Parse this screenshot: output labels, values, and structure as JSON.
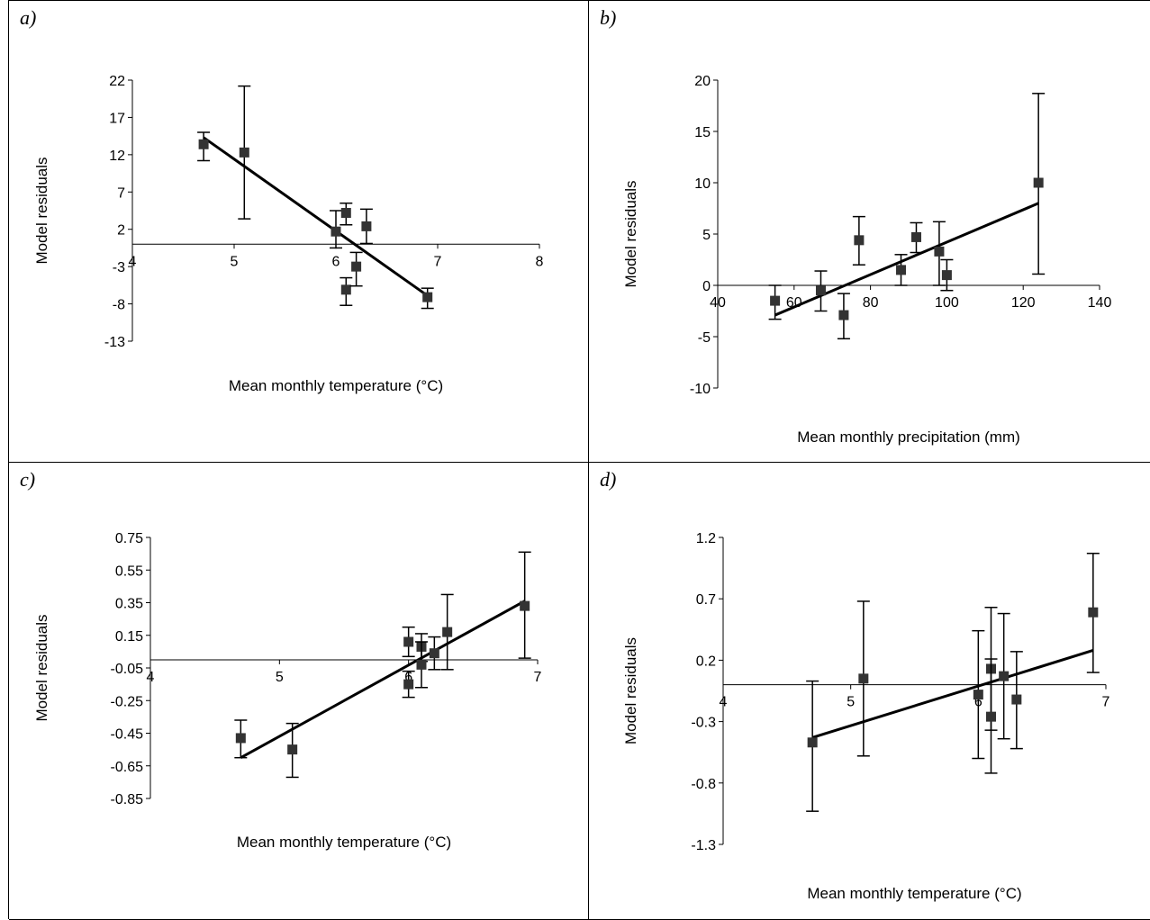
{
  "chart_data": [
    {
      "panel_label": "a)",
      "type": "scatter",
      "xlabel": "Mean monthly temperature (°C)",
      "ylabel": "Model residuals",
      "xlim": [
        4,
        8
      ],
      "ylim": [
        -13,
        22
      ],
      "x_ticks": [
        "4",
        "5",
        "6",
        "7",
        "8"
      ],
      "y_ticks": [
        "22",
        "17",
        "12",
        "7",
        "2",
        "-3",
        "-8",
        "-13"
      ],
      "series": [
        {
          "points": [
            {
              "x": 4.7,
              "y": 13.4,
              "err_lo": 11.2,
              "err_hi": 15.0
            },
            {
              "x": 5.1,
              "y": 12.3,
              "err_lo": 3.4,
              "err_hi": 21.2
            },
            {
              "x": 6.0,
              "y": 1.7,
              "err_lo": -0.5,
              "err_hi": 4.5
            },
            {
              "x": 6.1,
              "y": 4.2,
              "err_lo": 2.6,
              "err_hi": 5.5
            },
            {
              "x": 6.1,
              "y": -6.1,
              "err_lo": -8.2,
              "err_hi": -4.5
            },
            {
              "x": 6.2,
              "y": -3.0,
              "err_lo": -5.6,
              "err_hi": -1.1
            },
            {
              "x": 6.3,
              "y": 2.4,
              "err_lo": 0.1,
              "err_hi": 4.7
            },
            {
              "x": 6.9,
              "y": -7.1,
              "err_lo": -8.6,
              "err_hi": -5.9
            }
          ],
          "trendline": {
            "x": [
              4.7,
              6.9
            ],
            "y": [
              14.3,
              -6.9
            ]
          }
        }
      ]
    },
    {
      "panel_label": "b)",
      "type": "scatter",
      "xlabel": "Mean monthly precipitation (mm)",
      "ylabel": "Model residuals",
      "xlim": [
        40,
        140
      ],
      "ylim": [
        -10,
        20
      ],
      "x_ticks": [
        "40",
        "60",
        "80",
        "100",
        "120",
        "140"
      ],
      "y_ticks": [
        "20",
        "15",
        "10",
        "5",
        "0",
        "-5",
        "-10"
      ],
      "series": [
        {
          "points": [
            {
              "x": 55,
              "y": -1.5,
              "err_lo": -3.3,
              "err_hi": 0.0
            },
            {
              "x": 67,
              "y": -0.5,
              "err_lo": -2.5,
              "err_hi": 1.4
            },
            {
              "x": 73,
              "y": -2.9,
              "err_lo": -5.2,
              "err_hi": -0.8
            },
            {
              "x": 77,
              "y": 4.4,
              "err_lo": 2.0,
              "err_hi": 6.7
            },
            {
              "x": 88,
              "y": 1.5,
              "err_lo": 0.0,
              "err_hi": 3.0
            },
            {
              "x": 92,
              "y": 4.7,
              "err_lo": 3.2,
              "err_hi": 6.1
            },
            {
              "x": 98,
              "y": 3.3,
              "err_lo": 0.0,
              "err_hi": 6.2
            },
            {
              "x": 100,
              "y": 1.0,
              "err_lo": -0.5,
              "err_hi": 2.5
            },
            {
              "x": 124,
              "y": 10.0,
              "err_lo": 1.1,
              "err_hi": 18.7
            }
          ],
          "trendline": {
            "x": [
              55,
              124
            ],
            "y": [
              -2.9,
              8.0
            ]
          }
        }
      ]
    },
    {
      "panel_label": "c)",
      "type": "scatter",
      "xlabel": "Mean monthly temperature (°C)",
      "ylabel": "Model residuals",
      "xlim": [
        4,
        7
      ],
      "ylim": [
        -0.85,
        0.75
      ],
      "x_ticks": [
        "4",
        "5",
        "6",
        "7"
      ],
      "y_ticks": [
        "0.75",
        "0.55",
        "0.35",
        "0.15",
        "-0.05",
        "-0.25",
        "-0.45",
        "-0.65",
        "-0.85"
      ],
      "series": [
        {
          "points": [
            {
              "x": 4.7,
              "y": -0.48,
              "err_lo": -0.6,
              "err_hi": -0.37
            },
            {
              "x": 5.1,
              "y": -0.55,
              "err_lo": -0.72,
              "err_hi": -0.39
            },
            {
              "x": 6.0,
              "y": 0.11,
              "err_lo": 0.02,
              "err_hi": 0.2
            },
            {
              "x": 6.0,
              "y": -0.15,
              "err_lo": -0.23,
              "err_hi": -0.07
            },
            {
              "x": 6.1,
              "y": 0.08,
              "err_lo": -0.01,
              "err_hi": 0.16
            },
            {
              "x": 6.1,
              "y": -0.03,
              "err_lo": -0.17,
              "err_hi": 0.11
            },
            {
              "x": 6.2,
              "y": 0.04,
              "err_lo": -0.06,
              "err_hi": 0.14
            },
            {
              "x": 6.3,
              "y": 0.17,
              "err_lo": -0.06,
              "err_hi": 0.4
            },
            {
              "x": 6.9,
              "y": 0.33,
              "err_lo": 0.01,
              "err_hi": 0.66
            }
          ],
          "trendline": {
            "x": [
              4.7,
              6.9
            ],
            "y": [
              -0.6,
              0.36
            ]
          }
        }
      ]
    },
    {
      "panel_label": "d)",
      "type": "scatter",
      "xlabel": "Mean monthly temperature (°C)",
      "ylabel": "Model residuals",
      "xlim": [
        4,
        7
      ],
      "ylim": [
        -1.3,
        1.2
      ],
      "x_ticks": [
        "4",
        "5",
        "6",
        "7"
      ],
      "y_ticks": [
        "1.2",
        "0.7",
        "0.2",
        "-0.3",
        "-0.8",
        "-1.3"
      ],
      "series": [
        {
          "points": [
            {
              "x": 4.7,
              "y": -0.47,
              "err_lo": -1.03,
              "err_hi": 0.03
            },
            {
              "x": 5.1,
              "y": 0.05,
              "err_lo": -0.58,
              "err_hi": 0.68
            },
            {
              "x": 6.0,
              "y": -0.08,
              "err_lo": -0.6,
              "err_hi": 0.44
            },
            {
              "x": 6.1,
              "y": 0.13,
              "err_lo": -0.37,
              "err_hi": 0.63
            },
            {
              "x": 6.1,
              "y": -0.26,
              "err_lo": -0.72,
              "err_hi": 0.21
            },
            {
              "x": 6.2,
              "y": 0.07,
              "err_lo": -0.44,
              "err_hi": 0.58
            },
            {
              "x": 6.3,
              "y": -0.12,
              "err_lo": -0.52,
              "err_hi": 0.27
            },
            {
              "x": 6.9,
              "y": 0.59,
              "err_lo": 0.1,
              "err_hi": 1.07
            }
          ],
          "trendline": {
            "x": [
              4.7,
              6.9
            ],
            "y": [
              -0.43,
              0.28
            ]
          }
        }
      ]
    }
  ]
}
